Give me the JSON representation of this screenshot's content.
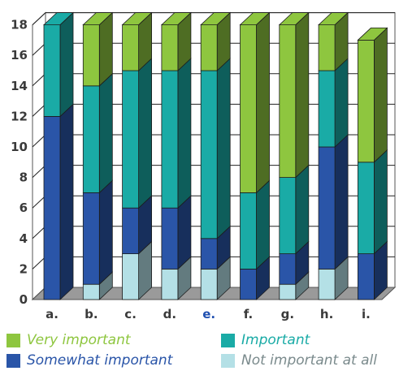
{
  "colors": {
    "very_important": "#8ec63f",
    "important": "#1aaba6",
    "somewhat_important": "#2a55a8",
    "not_important_at_all": "#b4e0e6",
    "highlight_label": "#1f4fb0",
    "axis_text": "#3a3a3a"
  },
  "chart_data": {
    "type": "bar",
    "stacked": true,
    "three_d": true,
    "categories": [
      "a.",
      "b.",
      "c.",
      "d.",
      "e.",
      "f.",
      "g.",
      "h.",
      "i."
    ],
    "highlighted_category": "e.",
    "series": [
      {
        "name": "Not important at all",
        "key": "not_important_at_all",
        "values": [
          0,
          1,
          3,
          2,
          2,
          0,
          1,
          2,
          0
        ]
      },
      {
        "name": "Somewhat important",
        "key": "somewhat_important",
        "values": [
          12,
          6,
          3,
          4,
          2,
          2,
          2,
          8,
          3
        ]
      },
      {
        "name": "Important",
        "key": "important",
        "values": [
          6,
          7,
          9,
          9,
          11,
          5,
          5,
          5,
          6
        ]
      },
      {
        "name": "Very important",
        "key": "very_important",
        "values": [
          0,
          4,
          3,
          3,
          3,
          11,
          10,
          3,
          8
        ]
      }
    ],
    "yticks": [
      "0",
      "2",
      "4",
      "6",
      "8",
      "10",
      "12",
      "14",
      "16",
      "18"
    ],
    "ylim": [
      0,
      18
    ],
    "grid": true,
    "legend_position": "bottom"
  },
  "legend": [
    {
      "label": "Very important",
      "color_key": "very_important"
    },
    {
      "label": "Important",
      "color_key": "important"
    },
    {
      "label": "Somewhat important",
      "color_key": "somewhat_important"
    },
    {
      "label": "Not important at all",
      "color_key": "not_important_at_all"
    }
  ]
}
